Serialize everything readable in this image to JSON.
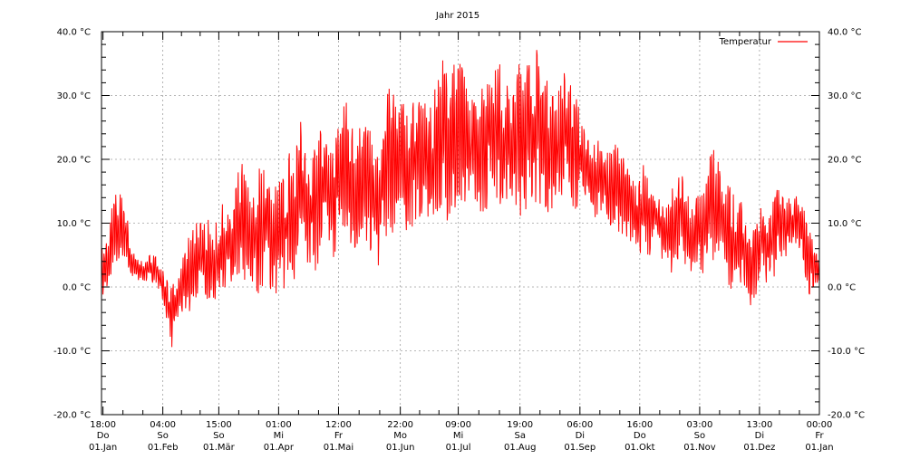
{
  "chart_data": {
    "type": "line",
    "title": "Jahr 2015",
    "xlabel": "",
    "ylabel": "",
    "ylim": [
      -20,
      40
    ],
    "y_ticks": [
      "-20.0 °C",
      "-10.0 °C",
      "0.0 °C",
      "10.0 °C",
      "20.0 °C",
      "30.0 °C",
      "40.0 °C"
    ],
    "grid": true,
    "legend_position": "top-right",
    "x_ticks": [
      {
        "time": "18:00",
        "day": "Do",
        "date": "01.Jan",
        "doy": 0.75
      },
      {
        "time": "04:00",
        "day": "So",
        "date": "01.Feb",
        "doy": 31.17
      },
      {
        "time": "15:00",
        "day": "So",
        "date": "01.Mär",
        "doy": 59.63
      },
      {
        "time": "01:00",
        "day": "Mi",
        "date": "01.Apr",
        "doy": 90.04
      },
      {
        "time": "12:00",
        "day": "Fr",
        "date": "01.Mai",
        "doy": 120.5
      },
      {
        "time": "22:00",
        "day": "Mo",
        "date": "01.Jun",
        "doy": 151.92
      },
      {
        "time": "09:00",
        "day": "Mi",
        "date": "01.Jul",
        "doy": 181.38
      },
      {
        "time": "19:00",
        "day": "Sa",
        "date": "01.Aug",
        "doy": 212.79
      },
      {
        "time": "06:00",
        "day": "Di",
        "date": "01.Sep",
        "doy": 243.25
      },
      {
        "time": "16:00",
        "day": "Do",
        "date": "01.Okt",
        "doy": 273.67
      },
      {
        "time": "03:00",
        "day": "So",
        "date": "01.Nov",
        "doy": 304.13
      },
      {
        "time": "13:00",
        "day": "Di",
        "date": "01.Dez",
        "doy": 334.54
      },
      {
        "time": "00:00",
        "day": "Fr",
        "date": "01.Jan",
        "doy": 365.0
      }
    ],
    "series": [
      {
        "name": "Temperatur",
        "color": "#ff0000",
        "day_of_year": [
          0,
          3,
          6,
          9,
          12,
          15,
          18,
          21,
          24,
          27,
          30,
          33,
          36,
          39,
          42,
          45,
          48,
          51,
          54,
          57,
          60,
          63,
          66,
          69,
          72,
          75,
          78,
          81,
          84,
          87,
          90,
          93,
          96,
          99,
          102,
          105,
          108,
          111,
          114,
          117,
          120,
          123,
          126,
          129,
          132,
          135,
          138,
          141,
          144,
          147,
          150,
          153,
          156,
          159,
          162,
          165,
          168,
          171,
          174,
          177,
          180,
          183,
          186,
          189,
          192,
          195,
          198,
          201,
          204,
          207,
          210,
          213,
          216,
          219,
          222,
          225,
          228,
          231,
          234,
          237,
          240,
          243,
          246,
          249,
          252,
          255,
          258,
          261,
          264,
          267,
          270,
          273,
          276,
          279,
          282,
          285,
          288,
          291,
          294,
          297,
          300,
          303,
          306,
          309,
          312,
          315,
          318,
          321,
          324,
          327,
          330,
          333,
          336,
          339,
          342,
          345,
          348,
          351,
          354,
          357,
          360,
          363,
          365
        ],
        "temp_min": [
          -1.5,
          -3.5,
          1,
          3,
          4,
          1.5,
          0.5,
          1,
          0.5,
          0.5,
          -1,
          -5,
          -10,
          -6,
          -4,
          -5,
          -3,
          -1,
          -2,
          -4,
          -1,
          0,
          -1,
          -2,
          1,
          -2,
          0,
          -2,
          2,
          -2,
          -1,
          -2,
          2,
          0,
          4,
          3,
          2,
          4,
          7,
          3,
          7,
          7,
          6,
          5,
          8,
          6,
          5,
          3,
          8,
          7,
          10,
          10,
          8,
          10,
          11,
          10,
          9,
          12,
          11,
          10,
          9,
          11,
          12,
          14,
          12,
          11,
          14,
          13,
          12,
          13,
          8,
          11,
          12,
          14,
          12,
          13,
          11,
          14,
          12,
          15,
          12,
          11,
          14,
          9,
          10,
          13,
          9,
          8,
          9,
          6,
          7,
          6,
          3,
          5,
          9,
          3,
          4,
          1,
          5,
          2,
          0,
          3,
          1,
          5,
          2,
          3,
          -1,
          -2,
          1,
          0,
          -3,
          -1,
          3,
          -2,
          1,
          5,
          4,
          6,
          7,
          3,
          -2,
          0,
          1
        ],
        "temp_max": [
          6,
          9,
          15,
          15,
          14,
          6,
          5,
          4,
          5,
          6,
          3,
          2,
          0,
          3,
          5,
          9,
          12,
          10,
          11,
          9,
          12,
          14,
          11,
          18,
          20,
          16,
          15,
          21,
          19,
          16,
          17,
          18,
          22,
          24,
          27,
          24,
          22,
          26,
          24,
          22,
          26,
          31,
          28,
          24,
          27,
          26,
          23,
          20,
          28,
          33,
          32,
          29,
          28,
          30,
          31,
          29,
          28,
          34,
          37,
          38,
          36,
          35,
          33,
          29,
          32,
          34,
          37,
          38,
          33,
          32,
          34,
          39,
          37,
          36,
          38,
          33,
          32,
          30,
          33,
          35,
          31,
          30,
          25,
          22,
          24,
          22,
          21,
          23,
          22,
          19,
          18,
          17,
          20,
          16,
          14,
          15,
          13,
          17,
          19,
          16,
          12,
          15,
          18,
          21,
          22,
          19,
          17,
          15,
          16,
          10,
          8,
          11,
          14,
          13,
          15,
          16,
          13,
          15,
          15,
          14,
          10,
          7,
          3
        ]
      }
    ]
  }
}
